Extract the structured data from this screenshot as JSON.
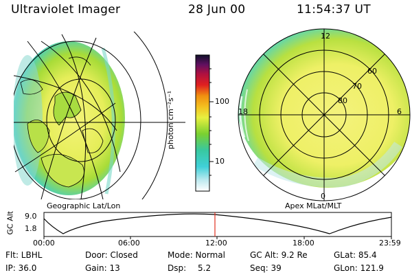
{
  "header": {
    "instrument": "Ultraviolet Imager",
    "date": "28 Jun 00",
    "time": "11:54:37 UT"
  },
  "left_panel": {
    "caption": "Geographic Lat/Lon"
  },
  "right_panel": {
    "caption": "Apex MLat/MLT",
    "mlt_labels": {
      "top": "12",
      "left": "18",
      "right": "6",
      "bottom": "0"
    },
    "mlat_labels": [
      "60",
      "70",
      "80"
    ]
  },
  "colorbar": {
    "unit_label": "photon cm⁻²s⁻¹",
    "ticks": [
      "100",
      "10"
    ],
    "scale": "log"
  },
  "timeline": {
    "y_label": "GC Alt",
    "y_ticks": [
      "9.0",
      "1.8"
    ],
    "x_ticks": [
      "00:00",
      "06:00",
      "12:00",
      "18:00",
      "23:59"
    ],
    "marker_time": "11:54:37",
    "marker_color": "#e0301e"
  },
  "status": {
    "flt": "Flt: LBHL",
    "ip": "IP: 36.0",
    "door": "Door: Closed",
    "gain": "Gain: 13",
    "mode": "Mode: Normal",
    "dsp": "Dsp:",
    "dsp_value": "5.2",
    "gcalt": "GC Alt: 9.2 Re",
    "seq": "Seq: 39",
    "glat": "GLat: 85.4",
    "glon": "GLon: 121.9"
  },
  "colors": {
    "aurora_yellow": "#f0f070",
    "aurora_green": "#9ad830",
    "aurora_cyan": "#40d0c8",
    "grid": "#000000"
  }
}
